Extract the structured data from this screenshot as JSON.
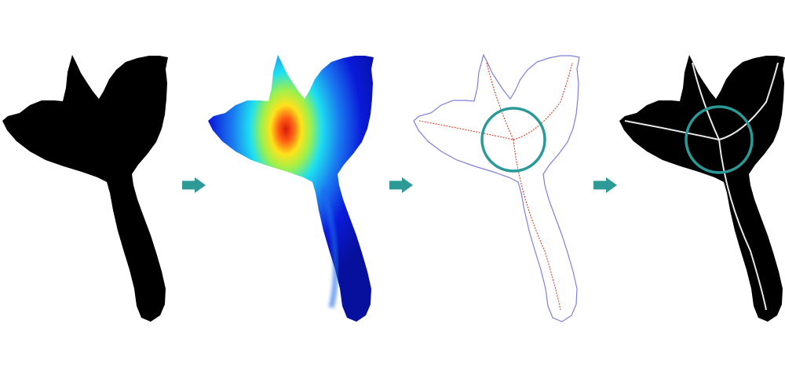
{
  "colors": {
    "background": "#ffffff",
    "silhouette": "#000000",
    "contour": "#7f7fe0",
    "medial_axis": "#d9442c",
    "skeleton": "#e8e8e8",
    "junction_circle": "#2a9a98",
    "arrow": "#2e9a98",
    "heat_low": "#0a1ad8",
    "heat_mid": "#1ee0f0",
    "heat_high": "#ffe21a",
    "heat_peak": "#d91a0a"
  },
  "stages": [
    {
      "name": "binary-silhouette"
    },
    {
      "name": "distance-transform-heatmap"
    },
    {
      "name": "contour-with-medial-axis"
    },
    {
      "name": "skeleton-overlay"
    }
  ],
  "arrows": [
    {
      "name": "arrow-1",
      "icon": "arrow-right-icon"
    },
    {
      "name": "arrow-2",
      "icon": "arrow-right-icon"
    },
    {
      "name": "arrow-3",
      "icon": "arrow-right-icon"
    }
  ]
}
